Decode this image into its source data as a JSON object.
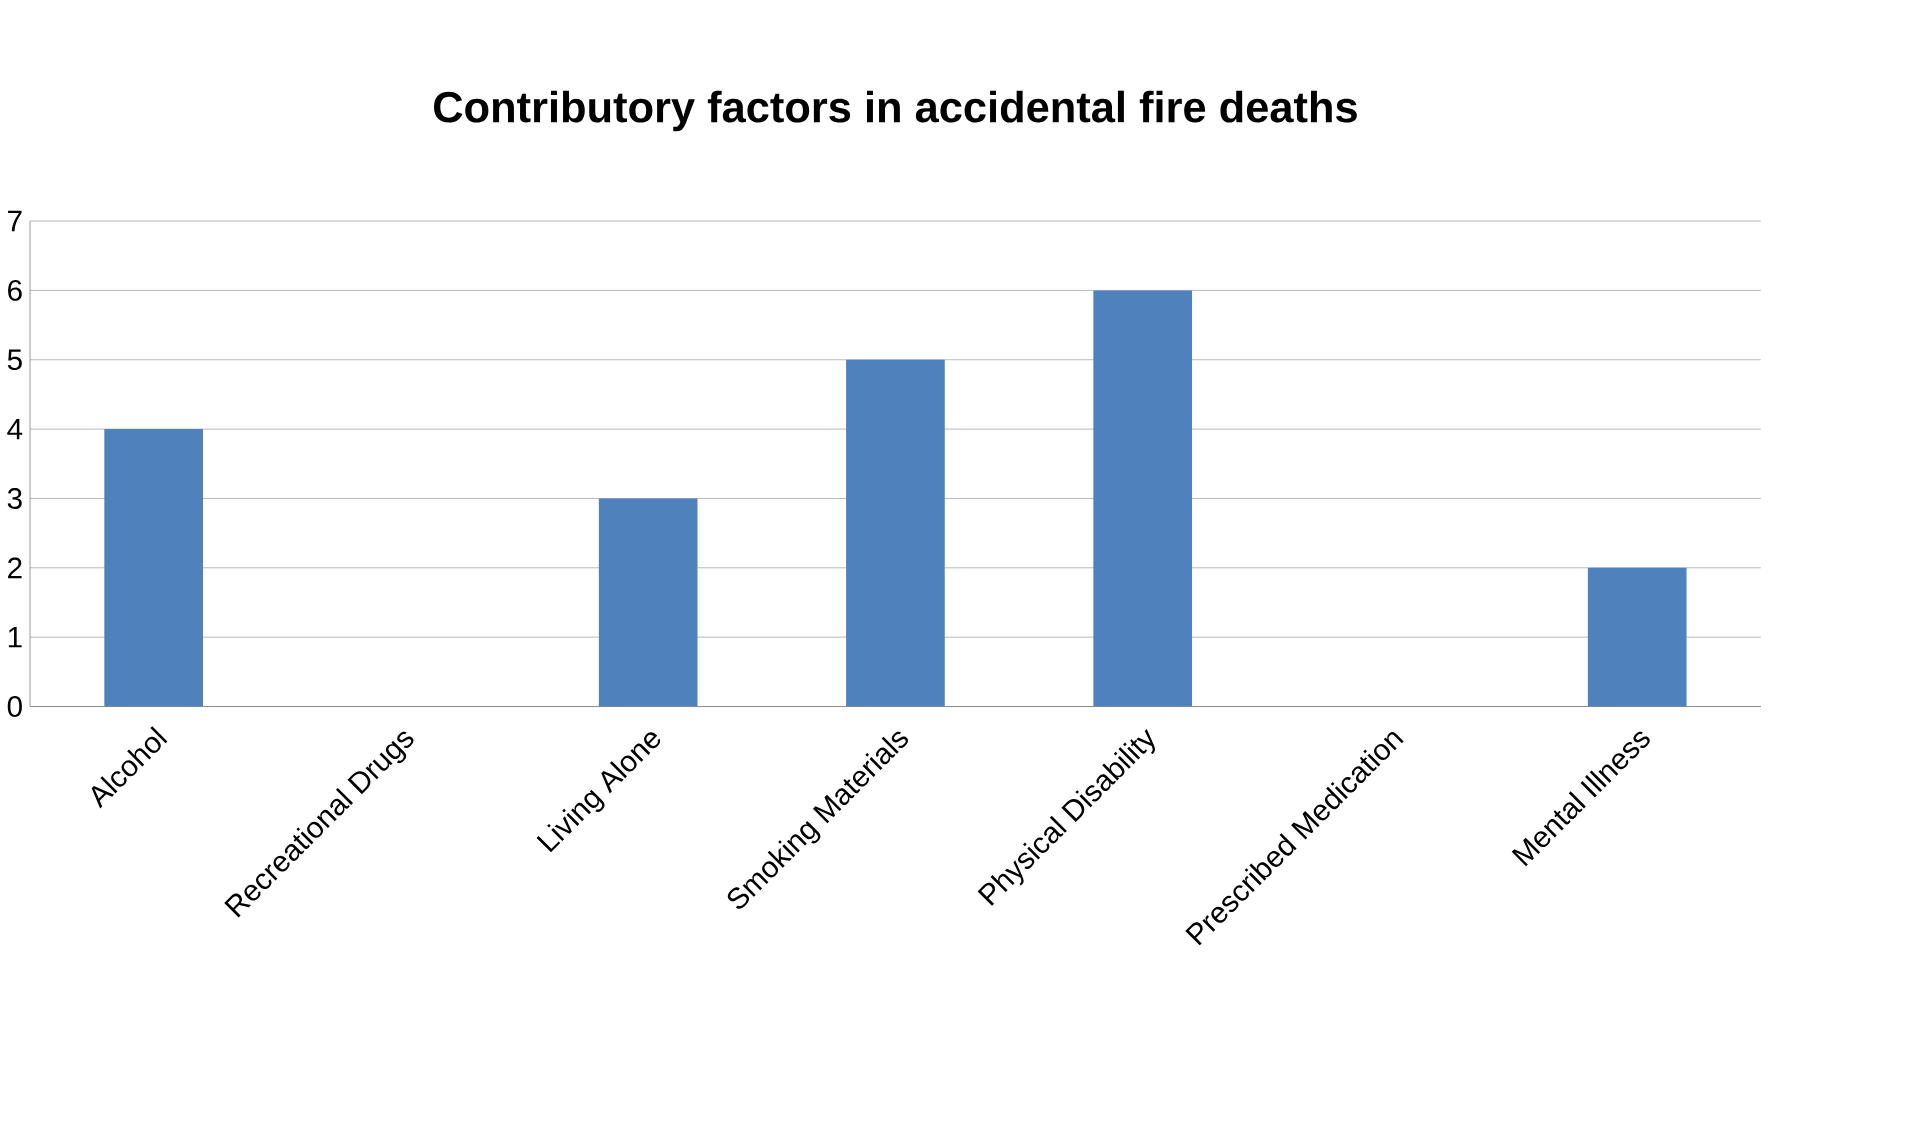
{
  "chart_data": {
    "type": "bar",
    "title": "Contributory factors in accidental fire  deaths",
    "categories": [
      "Alcohol",
      "Recreational Drugs",
      "Living Alone",
      "Smoking Materials",
      "Physical Disability",
      "Prescribed Medication",
      "Mental Illness"
    ],
    "values": [
      4,
      0,
      3,
      5,
      6,
      0,
      2
    ],
    "color": "#4f81bd",
    "ylim": [
      0,
      7
    ],
    "yticks": [
      0,
      1,
      2,
      3,
      4,
      5,
      6,
      7
    ],
    "grid": "y"
  }
}
